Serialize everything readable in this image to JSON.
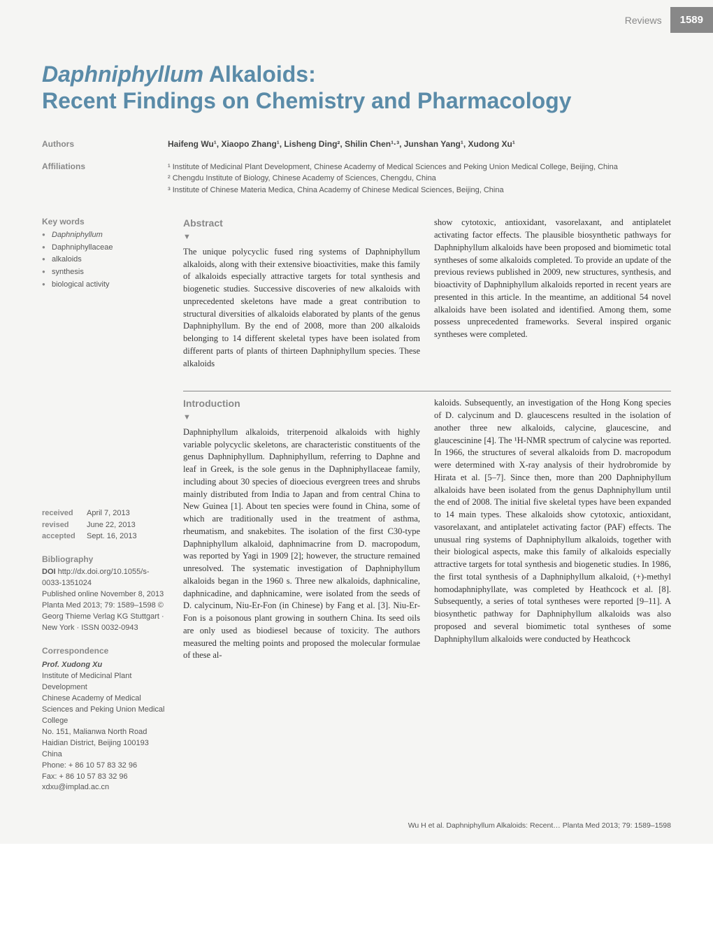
{
  "header": {
    "section_label": "Reviews",
    "page_number": "1589"
  },
  "title": {
    "line1_italic": "Daphniphyllum",
    "line1_rest": " Alkaloids:",
    "line2": "Recent Findings on Chemistry and Pharmacology"
  },
  "meta": {
    "authors_label": "Authors",
    "affiliations_label": "Affiliations",
    "authors_text": "Haifeng Wu¹, Xiaopo Zhang¹, Lisheng Ding², Shilin Chen¹·³, Junshan Yang¹, Xudong Xu¹",
    "affiliations": [
      "¹ Institute of Medicinal Plant Development, Chinese Academy of Medical Sciences and Peking Union Medical College, Beijing, China",
      "² Chengdu Institute of Biology, Chinese Academy of Sciences, Chengdu, China",
      "³ Institute of Chinese Materia Medica, China Academy of Chinese Medical Sciences, Beijing, China"
    ]
  },
  "sidebar": {
    "keywords_heading": "Key words",
    "keywords": [
      {
        "text": "Daphniphyllum",
        "italic": true
      },
      {
        "text": "Daphniphyllaceae",
        "italic": false
      },
      {
        "text": "alkaloids",
        "italic": false
      },
      {
        "text": "synthesis",
        "italic": false
      },
      {
        "text": "biological activity",
        "italic": false
      }
    ],
    "dates": {
      "received_label": "received",
      "received_value": "April 7, 2013",
      "revised_label": "revised",
      "revised_value": "June 22, 2013",
      "accepted_label": "accepted",
      "accepted_value": "Sept. 16, 2013"
    },
    "bibliography": {
      "heading": "Bibliography",
      "doi_label": "DOI",
      "doi_value": " http://dx.doi.org/10.1055/s-0033-1351024",
      "published": "Published online November 8, 2013",
      "journal": "Planta Med 2013; 79: 1589–1598 © Georg Thieme Verlag KG Stuttgart · New York · ISSN 0032‑0943"
    },
    "correspondence": {
      "heading": "Correspondence",
      "name": "Prof. Xudong Xu",
      "lines": [
        "Institute of Medicinal Plant Development",
        "Chinese Academy of Medical Sciences and Peking Union Medical College",
        "No. 151, Malianwa North Road",
        "Haidian District, Beijing 100193",
        "China",
        "Phone: + 86 10 57 83 32 96",
        "Fax: + 86 10 57 83 32 96",
        "xdxu@implad.ac.cn"
      ]
    }
  },
  "abstract": {
    "heading": "Abstract",
    "col1": "The unique polycyclic fused ring systems of Daphniphyllum alkaloids, along with their extensive bioactivities, make this family of alkaloids especially attractive targets for total synthesis and biogenetic studies. Successive discoveries of new alkaloids with unprecedented skeletons have made a great contribution to structural diversities of alkaloids elaborated by plants of the genus Daphniphyllum. By the end of 2008, more than 200 alkaloids belonging to 14 different skeletal types have been isolated from different parts of plants of thirteen Daphniphyllum species. These alkaloids",
    "col2": "show cytotoxic, antioxidant, vasorelaxant, and antiplatelet activating factor effects. The plausible biosynthetic pathways for Daphniphyllum alkaloids have been proposed and biomimetic total syntheses of some alkaloids completed. To provide an update of the previous reviews published in 2009, new structures, synthesis, and bioactivity of Daphniphyllum alkaloids reported in recent years are presented in this article. In the meantime, an additional 54 novel alkaloids have been isolated and identified. Among them, some possess unprecedented frameworks. Several inspired organic syntheses were completed."
  },
  "introduction": {
    "heading": "Introduction",
    "col1": "Daphniphyllum alkaloids, triterpenoid alkaloids with highly variable polycyclic skeletons, are characteristic constituents of the genus Daphniphyllum. Daphniphyllum, referring to Daphne and leaf in Greek, is the sole genus in the Daphniphyllaceae family, including about 30 species of dioecious evergreen trees and shrubs mainly distributed from India to Japan and from central China to New Guinea [1]. About ten species were found in China, some of which are traditionally used in the treatment of asthma, rheumatism, and snakebites. The isolation of the first C30-type Daphniphyllum alkaloid, daphnimacrine from D. macropodum, was reported by Yagi in 1909 [2]; however, the structure remained unresolved. The systematic investigation of Daphniphyllum alkaloids began in the 1960 s. Three new alkaloids, daphnicaline, daphnicadine, and daphnicamine, were isolated from the seeds of D. calycinum, Niu-Er-Fon (in Chinese) by Fang et al. [3]. Niu-Er-Fon is a poisonous plant growing in southern China. Its seed oils are only used as biodiesel because of toxicity. The authors measured the melting points and proposed the molecular formulae of these al-",
    "col2": "kaloids. Subsequently, an investigation of the Hong Kong species of D. calycinum and D. glaucescens resulted in the isolation of another three new alkaloids, calycine, glaucescine, and glaucescinine [4]. The ¹H-NMR spectrum of calycine was reported. In 1966, the structures of several alkaloids from D. macropodum were determined with X-ray analysis of their hydrobromide by Hirata et al. [5–7]. Since then, more than 200 Daphniphyllum alkaloids have been isolated from the genus Daphniphyllum until the end of 2008. The initial five skeletal types have been expanded to 14 main types. These alkaloids show cytotoxic, antioxidant, vasorelaxant, and antiplatelet activating factor (PAF) effects. The unusual ring systems of Daphniphyllum alkaloids, together with their biological aspects, make this family of alkaloids especially attractive targets for total synthesis and biogenetic studies. In 1986, the first total synthesis of a Daphniphyllum alkaloid, (+)-methyl homodaphniphyllate, was completed by Heathcock et al. [8]. Subsequently, a series of total syntheses were reported [9–11]. A biosynthetic pathway for Daphniphyllum alkaloids was also proposed and several biomimetic total syntheses of some Daphniphyllum alkaloids were conducted by Heathcock"
  },
  "footer": {
    "citation": "Wu H et al. Daphniphyllum Alkaloids: Recent…   Planta Med 2013; 79: 1589–1598"
  },
  "colors": {
    "title_color": "#5a8ba8",
    "label_gray": "#888888",
    "text_gray": "#555555",
    "body_text": "#333333",
    "page_bg": "#f5f5f3",
    "pagenum_bg": "#888888",
    "pagenum_fg": "#ffffff"
  },
  "typography": {
    "title_fontsize": 32,
    "section_heading_fontsize": 14,
    "body_fontsize": 12.5,
    "sidebar_fontsize": 11,
    "title_font": "Arial",
    "body_font": "Georgia"
  }
}
